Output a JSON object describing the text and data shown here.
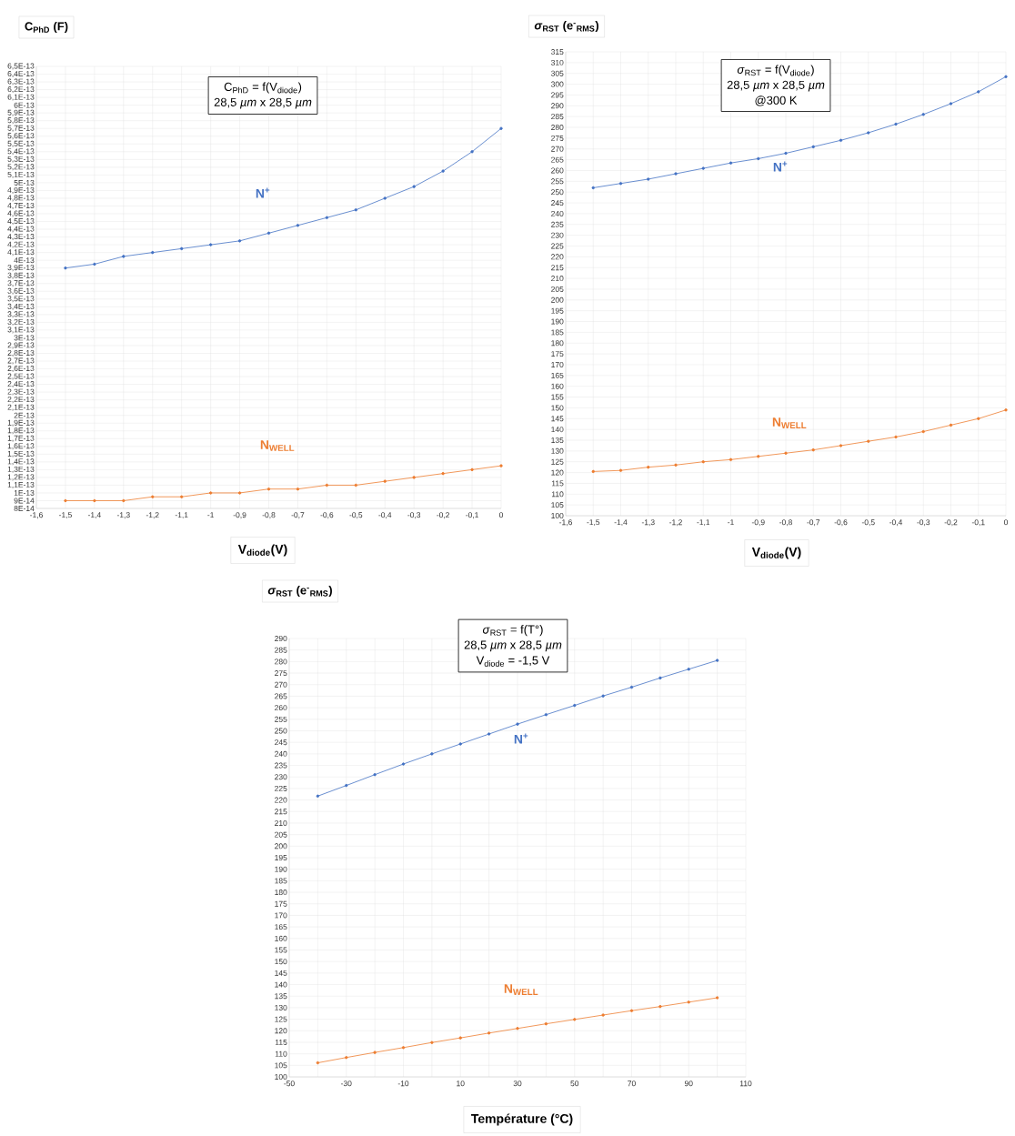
{
  "chart_data": [
    {
      "type": "line",
      "ylabel": "C$_{PhD}$ (F)",
      "xlabel": "V$_{diode}$(V)",
      "annotations": [
        "C$_{PhD}$ = f(V$_{diode}$)",
        "28,5 *µm*  x 28,5 *µm*"
      ],
      "x": [
        -1.5,
        -1.4,
        -1.3,
        -1.2,
        -1.1,
        -1.0,
        -0.9,
        -0.8,
        -0.7,
        -0.6,
        -0.5,
        -0.4,
        -0.3,
        -0.2,
        -0.1,
        0
      ],
      "series": [
        {
          "name": "N$^{+}$",
          "color": "#4472c4",
          "values": [
            3.9e-13,
            3.95e-13,
            4.05e-13,
            4.1e-13,
            4.15e-13,
            4.2e-13,
            4.25e-13,
            4.35e-13,
            4.45e-13,
            4.55e-13,
            4.65e-13,
            4.8e-13,
            4.95e-13,
            5.15e-13,
            5.4e-13,
            5.7e-13
          ]
        },
        {
          "name": "N$_{WELL}$",
          "color": "#ed7d31",
          "values": [
            9e-14,
            9e-14,
            9e-14,
            9.5e-14,
            9.5e-14,
            1e-13,
            1e-13,
            1.05e-13,
            1.05e-13,
            1.1e-13,
            1.1e-13,
            1.15e-13,
            1.2e-13,
            1.25e-13,
            1.3e-13,
            1.35e-13
          ]
        }
      ],
      "xlim": [
        -1.6,
        0
      ],
      "ylim": [
        8e-14,
        6.5e-13
      ],
      "xticks": [
        {
          "value": -1.6,
          "label": "-1,6"
        },
        {
          "value": -1.5,
          "label": "-1,5"
        },
        {
          "value": -1.4,
          "label": "-1,4"
        },
        {
          "value": -1.3,
          "label": "-1,3"
        },
        {
          "value": -1.2,
          "label": "-1,2"
        },
        {
          "value": -1.1,
          "label": "-1,1"
        },
        -1,
        {
          "value": -0.9,
          "label": "-0,9"
        },
        {
          "value": -0.8,
          "label": "-0,8"
        },
        {
          "value": -0.7,
          "label": "-0,7"
        },
        {
          "value": -0.6,
          "label": "-0,6"
        },
        {
          "value": -0.5,
          "label": "-0,5"
        },
        {
          "value": -0.4,
          "label": "-0,4"
        },
        {
          "value": -0.3,
          "label": "-0,3"
        },
        {
          "value": -0.2,
          "label": "-0,2"
        },
        {
          "value": -0.1,
          "label": "-0,1"
        },
        0
      ],
      "yticks": [
        {
          "value": 8e-14,
          "label": "8E-14"
        },
        {
          "value": 9e-14,
          "label": "9E-14"
        },
        {
          "value": 1e-13,
          "label": "1E-13"
        },
        {
          "value": 1.1e-13,
          "label": "1,1E-13"
        },
        {
          "value": 1.2e-13,
          "label": "1,2E-13"
        },
        {
          "value": 1.3e-13,
          "label": "1,3E-13"
        },
        {
          "value": 1.4e-13,
          "label": "1,4E-13"
        },
        {
          "value": 1.5e-13,
          "label": "1,5E-13"
        },
        {
          "value": 1.6e-13,
          "label": "1,6E-13"
        },
        {
          "value": 1.7e-13,
          "label": "1,7E-13"
        },
        {
          "value": 1.8e-13,
          "label": "1,8E-13"
        },
        {
          "value": 1.9e-13,
          "label": "1,9E-13"
        },
        {
          "value": 2e-13,
          "label": "2E-13"
        },
        {
          "value": 2.1e-13,
          "label": "2,1E-13"
        },
        {
          "value": 2.2e-13,
          "label": "2,2E-13"
        },
        {
          "value": 2.3e-13,
          "label": "2,3E-13"
        },
        {
          "value": 2.4e-13,
          "label": "2,4E-13"
        },
        {
          "value": 2.5e-13,
          "label": "2,5E-13"
        },
        {
          "value": 2.6e-13,
          "label": "2,6E-13"
        },
        {
          "value": 2.7e-13,
          "label": "2,7E-13"
        },
        {
          "value": 2.8e-13,
          "label": "2,8E-13"
        },
        {
          "value": 2.9e-13,
          "label": "2,9E-13"
        },
        {
          "value": 3e-13,
          "label": "3E-13"
        },
        {
          "value": 3.1e-13,
          "label": "3,1E-13"
        },
        {
          "value": 3.2e-13,
          "label": "3,2E-13"
        },
        {
          "value": 3.3e-13,
          "label": "3,3E-13"
        },
        {
          "value": 3.4e-13,
          "label": "3,4E-13"
        },
        {
          "value": 3.5e-13,
          "label": "3,5E-13"
        },
        {
          "value": 3.6e-13,
          "label": "3,6E-13"
        },
        {
          "value": 3.7e-13,
          "label": "3,7E-13"
        },
        {
          "value": 3.8e-13,
          "label": "3,8E-13"
        },
        {
          "value": 3.9e-13,
          "label": "3,9E-13"
        },
        {
          "value": 4e-13,
          "label": "4E-13"
        },
        {
          "value": 4.1e-13,
          "label": "4,1E-13"
        },
        {
          "value": 4.2e-13,
          "label": "4,2E-13"
        },
        {
          "value": 4.3e-13,
          "label": "4,3E-13"
        },
        {
          "value": 4.4e-13,
          "label": "4,4E-13"
        },
        {
          "value": 4.5e-13,
          "label": "4,5E-13"
        },
        {
          "value": 4.6e-13,
          "label": "4,6E-13"
        },
        {
          "value": 4.7e-13,
          "label": "4,7E-13"
        },
        {
          "value": 4.8e-13,
          "label": "4,8E-13"
        },
        {
          "value": 4.9e-13,
          "label": "4,9E-13"
        },
        {
          "value": 5e-13,
          "label": "5E-13"
        },
        {
          "value": 5.1e-13,
          "label": "5,1E-13"
        },
        {
          "value": 5.2e-13,
          "label": "5,2E-13"
        },
        {
          "value": 5.3e-13,
          "label": "5,3E-13"
        },
        {
          "value": 5.4e-13,
          "label": "5,4E-13"
        },
        {
          "value": 5.5e-13,
          "label": "5,5E-13"
        },
        {
          "value": 5.6e-13,
          "label": "5,6E-13"
        },
        {
          "value": 5.7e-13,
          "label": "5,7E-13"
        },
        {
          "value": 5.8e-13,
          "label": "5,8E-13"
        },
        {
          "value": 5.9e-13,
          "label": "5,9E-13"
        },
        {
          "value": 6e-13,
          "label": "6E-13"
        },
        {
          "value": 6.1e-13,
          "label": "6,1E-13"
        },
        {
          "value": 6.2e-13,
          "label": "6,2E-13"
        },
        {
          "value": 6.3e-13,
          "label": "6,3E-13"
        },
        {
          "value": 6.4e-13,
          "label": "6,4E-13"
        },
        {
          "value": 6.5e-13,
          "label": "6,5E-13"
        }
      ],
      "grid": true,
      "marker": "circle",
      "line_style": "solid"
    },
    {
      "type": "line",
      "ylabel": "*σ*$_{RST}$ (e$^{-}$$_{RMS}$)",
      "xlabel": "V$_{diode}$(V)",
      "annotations": [
        "*σ*$_{RST}$ = f(V$_{diode}$)",
        "28,5 *µm*  x 28,5 *µm*",
        "@300 K"
      ],
      "x": [
        -1.5,
        -1.4,
        -1.3,
        -1.2,
        -1.1,
        -1.0,
        -0.9,
        -0.8,
        -0.7,
        -0.6,
        -0.5,
        -0.4,
        -0.3,
        -0.2,
        -0.1,
        0
      ],
      "series": [
        {
          "name": "N$^{+}$",
          "color": "#4472c4",
          "values": [
            252,
            254,
            256,
            258.5,
            261,
            263.5,
            265.5,
            268,
            271,
            274,
            277.5,
            281.5,
            286,
            291,
            296.5,
            303.5
          ]
        },
        {
          "name": "N$_{WELL}$",
          "color": "#ed7d31",
          "values": [
            120.5,
            121,
            122.5,
            123.5,
            125,
            126,
            127.5,
            129,
            130.5,
            132.5,
            134.5,
            136.5,
            139,
            142,
            145,
            149
          ]
        }
      ],
      "xlim": [
        -1.6,
        0
      ],
      "ylim": [
        100,
        315
      ],
      "xticks": [
        {
          "value": -1.6,
          "label": "-1,6"
        },
        {
          "value": -1.5,
          "label": "-1,5"
        },
        {
          "value": -1.4,
          "label": "-1,4"
        },
        {
          "value": -1.3,
          "label": "-1,3"
        },
        {
          "value": -1.2,
          "label": "-1,2"
        },
        {
          "value": -1.1,
          "label": "-1,1"
        },
        -1,
        {
          "value": -0.9,
          "label": "-0,9"
        },
        {
          "value": -0.8,
          "label": "-0,8"
        },
        {
          "value": -0.7,
          "label": "-0,7"
        },
        {
          "value": -0.6,
          "label": "-0,6"
        },
        {
          "value": -0.5,
          "label": "-0,5"
        },
        {
          "value": -0.4,
          "label": "-0,4"
        },
        {
          "value": -0.3,
          "label": "-0,3"
        },
        {
          "value": -0.2,
          "label": "-0,2"
        },
        {
          "value": -0.1,
          "label": "-0,1"
        },
        0
      ],
      "yticks": [
        100,
        105,
        110,
        115,
        120,
        125,
        130,
        135,
        140,
        145,
        150,
        155,
        160,
        165,
        170,
        175,
        180,
        185,
        190,
        195,
        200,
        205,
        210,
        215,
        220,
        225,
        230,
        235,
        240,
        245,
        250,
        255,
        260,
        265,
        270,
        275,
        280,
        285,
        290,
        295,
        300,
        305,
        310,
        315
      ],
      "grid": true,
      "marker": "circle",
      "line_style": "solid"
    },
    {
      "type": "line",
      "ylabel": "*σ*$_{RST}$ (e$^{-}$$_{RMS}$)",
      "xlabel": "Température (°C)",
      "annotations": [
        "*σ*$_{RST}$ = f(T°)",
        "28,5 *µm*  x 28,5 *µm*",
        "V$_{diode}$ = -1,5 V"
      ],
      "x": [
        -40,
        -30,
        -20,
        -10,
        0,
        10,
        20,
        30,
        40,
        50,
        60,
        70,
        80,
        90,
        100
      ],
      "series": [
        {
          "name": "N$^{+}$",
          "color": "#4472c4",
          "values": [
            221.7,
            226.3,
            231,
            235.6,
            240,
            244.3,
            248.6,
            252.9,
            257,
            261,
            265.1,
            268.9,
            272.9,
            276.7,
            280.5
          ]
        },
        {
          "name": "N$_{WELL}$",
          "color": "#ed7d31",
          "values": [
            106.1,
            108.4,
            110.6,
            112.7,
            114.9,
            116.9,
            119,
            121,
            123,
            124.9,
            126.8,
            128.7,
            130.5,
            132.4,
            134.3
          ]
        }
      ],
      "xlim": [
        -50,
        110
      ],
      "ylim": [
        100,
        290
      ],
      "xticks": [
        -50,
        {
          "value": -40,
          "label": null
        },
        -30,
        {
          "value": -20,
          "label": null
        },
        -10,
        {
          "value": 0,
          "label": null
        },
        10,
        {
          "value": 20,
          "label": null
        },
        30,
        {
          "value": 40,
          "label": null
        },
        50,
        {
          "value": 60,
          "label": null
        },
        70,
        {
          "value": 80,
          "label": null
        },
        90,
        {
          "value": 100,
          "label": null
        },
        110
      ],
      "yticks": [
        100,
        105,
        110,
        115,
        120,
        125,
        130,
        135,
        140,
        145,
        150,
        155,
        160,
        165,
        170,
        175,
        180,
        185,
        190,
        195,
        200,
        205,
        210,
        215,
        220,
        225,
        230,
        235,
        240,
        245,
        250,
        255,
        260,
        265,
        270,
        275,
        280,
        285,
        290
      ],
      "grid": true,
      "marker": "circle",
      "line_style": "solid"
    }
  ]
}
